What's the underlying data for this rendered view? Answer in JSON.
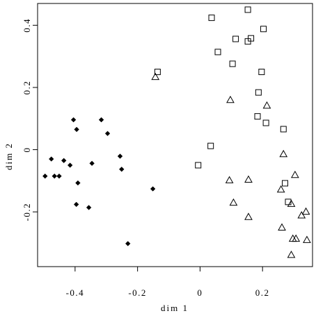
{
  "chart_data": {
    "type": "scatter",
    "title": "",
    "xlabel": "dim 1",
    "ylabel": "dim 2",
    "xlim": [
      -0.52,
      0.36
    ],
    "ylim": [
      -0.376,
      0.47
    ],
    "xticks": [
      -0.4,
      -0.2,
      0,
      0.2
    ],
    "xtick_labels": [
      "-0.4",
      "-0.2",
      "0",
      "0.2"
    ],
    "yticks": [
      -0.2,
      0,
      0.2,
      0.4
    ],
    "ytick_labels": [
      "-0.2",
      "0",
      "0.2",
      "0.4"
    ],
    "grid": false,
    "legend": "none",
    "series": [
      {
        "marker": "filled-diamond",
        "color": "#000000",
        "points": [
          [
            -0.405,
            0.096
          ],
          [
            -0.316,
            0.096
          ],
          [
            -0.395,
            0.065
          ],
          [
            -0.296,
            0.052
          ],
          [
            -0.476,
            -0.03
          ],
          [
            -0.436,
            -0.035
          ],
          [
            -0.256,
            -0.021
          ],
          [
            -0.416,
            -0.05
          ],
          [
            -0.346,
            -0.044
          ],
          [
            -0.496,
            -0.085
          ],
          [
            -0.466,
            -0.085
          ],
          [
            -0.451,
            -0.085
          ],
          [
            -0.251,
            -0.063
          ],
          [
            -0.391,
            -0.107
          ],
          [
            -0.151,
            -0.126
          ],
          [
            -0.396,
            -0.176
          ],
          [
            -0.356,
            -0.186
          ],
          [
            -0.231,
            -0.302
          ]
        ]
      },
      {
        "marker": "open-square",
        "color": "#000000",
        "points": [
          [
            0.153,
            0.45
          ],
          [
            0.037,
            0.424
          ],
          [
            0.203,
            0.388
          ],
          [
            0.114,
            0.356
          ],
          [
            0.163,
            0.358
          ],
          [
            0.153,
            0.348
          ],
          [
            0.057,
            0.314
          ],
          [
            0.104,
            0.276
          ],
          [
            -0.136,
            0.25
          ],
          [
            0.197,
            0.25
          ],
          [
            0.187,
            0.184
          ],
          [
            0.184,
            0.107
          ],
          [
            0.211,
            0.086
          ],
          [
            0.267,
            0.066
          ],
          [
            0.034,
            0.012
          ],
          [
            -0.006,
            -0.05
          ],
          [
            0.272,
            -0.108
          ],
          [
            0.282,
            -0.168
          ]
        ]
      },
      {
        "marker": "open-triangle",
        "color": "#000000",
        "points": [
          [
            -0.143,
            0.234
          ],
          [
            0.097,
            0.16
          ],
          [
            0.214,
            0.142
          ],
          [
            0.267,
            -0.014
          ],
          [
            0.094,
            -0.098
          ],
          [
            0.155,
            -0.096
          ],
          [
            0.304,
            -0.081
          ],
          [
            0.259,
            -0.128
          ],
          [
            0.107,
            -0.17
          ],
          [
            0.292,
            -0.174
          ],
          [
            0.339,
            -0.199
          ],
          [
            0.325,
            -0.211
          ],
          [
            0.155,
            -0.216
          ],
          [
            0.262,
            -0.25
          ],
          [
            0.297,
            -0.286
          ],
          [
            0.307,
            -0.286
          ],
          [
            0.342,
            -0.29
          ],
          [
            0.292,
            -0.338
          ]
        ]
      }
    ]
  }
}
